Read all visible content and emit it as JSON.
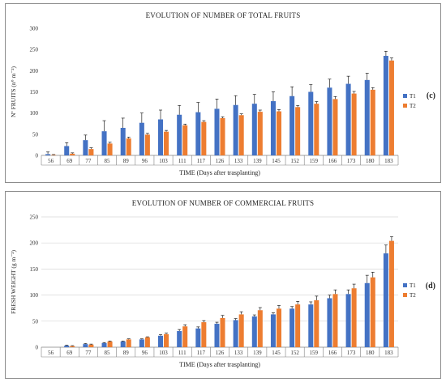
{
  "colors": {
    "T1": "#4472c4",
    "T2": "#ed7d31",
    "axis": "#808080",
    "grid": "#d9d9d9",
    "err": "#000000"
  },
  "chart_data": [
    {
      "type": "bar",
      "panel_label": "(c)",
      "title": "EVOLUTION OF NUMBER OF TOTAL FRUITS",
      "xlabel": "TIME (Days after trasplanting)",
      "ylabel": "Nº FRUITS (n° m⁻²)",
      "ylim": [
        0,
        300
      ],
      "yticks": [
        0,
        50,
        100,
        150,
        200,
        250,
        300
      ],
      "legend": "right",
      "grid": false,
      "categories": [
        "56",
        "69",
        "77",
        "85",
        "89",
        "96",
        "103",
        "111",
        "117",
        "126",
        "133",
        "139",
        "145",
        "152",
        "159",
        "166",
        "173",
        "180",
        "183"
      ],
      "series": [
        {
          "name": "T1",
          "values": [
            3,
            22,
            36,
            57,
            65,
            77,
            85,
            96,
            102,
            110,
            119,
            122,
            128,
            140,
            150,
            160,
            169,
            178,
            235
          ],
          "errors": [
            5,
            8,
            12,
            25,
            23,
            23,
            22,
            22,
            23,
            23,
            22,
            22,
            22,
            22,
            17,
            20,
            18,
            16,
            11
          ]
        },
        {
          "name": "T2",
          "values": [
            1,
            4,
            15,
            28,
            40,
            49,
            56,
            71,
            79,
            88,
            95,
            103,
            104,
            114,
            122,
            133,
            146,
            155,
            224
          ],
          "errors": [
            1,
            2,
            3,
            3,
            3,
            3,
            3,
            3,
            3,
            3,
            3,
            4,
            4,
            4,
            5,
            6,
            5,
            5,
            6
          ]
        }
      ]
    },
    {
      "type": "bar",
      "panel_label": "(d)",
      "title": "EVOLUTION OF NUMBER OF COMMERCIAL FRUITS",
      "xlabel": "TIME (Days after trasplanting)",
      "ylabel": "FRESH WEIGHT (g m⁻²)",
      "ylim": [
        0,
        250
      ],
      "yticks": [
        0,
        50,
        100,
        150,
        200,
        250
      ],
      "legend": "right",
      "grid": true,
      "categories": [
        "56",
        "69",
        "77",
        "85",
        "89",
        "96",
        "103",
        "111",
        "117",
        "126",
        "133",
        "139",
        "145",
        "152",
        "159",
        "166",
        "173",
        "180",
        "183"
      ],
      "series": [
        {
          "name": "T1",
          "values": [
            0,
            3,
            6,
            8,
            11,
            15,
            22,
            31,
            36,
            45,
            52,
            59,
            63,
            74,
            82,
            94,
            102,
            123,
            180
          ],
          "errors": [
            0,
            1,
            1,
            1,
            1,
            1,
            2,
            3,
            3,
            3,
            3,
            3,
            3,
            4,
            5,
            6,
            8,
            15,
            16
          ]
        },
        {
          "name": "T2",
          "values": [
            0,
            2,
            5,
            11,
            15,
            19,
            25,
            40,
            48,
            56,
            63,
            71,
            74,
            82,
            90,
            102,
            113,
            134,
            204
          ],
          "errors": [
            0,
            1,
            1,
            1,
            1,
            1,
            2,
            3,
            3,
            5,
            5,
            5,
            6,
            6,
            8,
            8,
            8,
            10,
            8
          ]
        }
      ]
    }
  ]
}
